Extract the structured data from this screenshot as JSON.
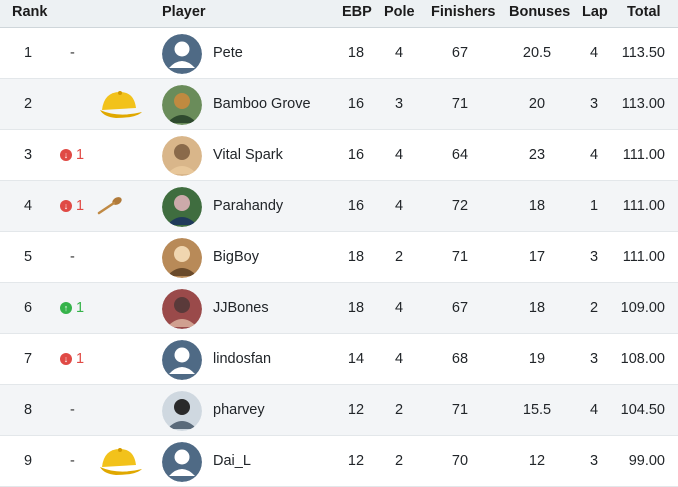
{
  "headers": {
    "rank": "Rank",
    "player": "Player",
    "ebp": "EBP",
    "pole": "Pole",
    "finishers": "Finishers",
    "bonuses": "Bonuses",
    "lap": "Lap",
    "total": "Total"
  },
  "colors": {
    "header_bg": "#edf1f3",
    "row_alt_bg": "#f3f5f7",
    "down": "#e04a45",
    "up": "#35b34a",
    "avatar_default": "#4f6a85"
  },
  "rows": [
    {
      "rank": "1",
      "change": "-",
      "change_dir": "none",
      "badge": "",
      "avatar": "default-avatar",
      "player": "Pete",
      "ebp": "18",
      "pole": "4",
      "finishers": "67",
      "bonuses": "20.5",
      "lap": "4",
      "total": "113.50"
    },
    {
      "rank": "2",
      "change": "",
      "change_dir": "none",
      "badge": "yellow-cap-icon",
      "avatar": "photo-avatar",
      "player": "Bamboo Grove",
      "ebp": "16",
      "pole": "3",
      "finishers": "71",
      "bonuses": "20",
      "lap": "3",
      "total": "113.00"
    },
    {
      "rank": "3",
      "change": "1",
      "change_dir": "down",
      "badge": "",
      "avatar": "photo-avatar",
      "player": "Vital Spark",
      "ebp": "16",
      "pole": "4",
      "finishers": "64",
      "bonuses": "23",
      "lap": "4",
      "total": "111.00"
    },
    {
      "rank": "4",
      "change": "1",
      "change_dir": "down",
      "badge": "wooden-spoon-icon",
      "avatar": "photo-avatar",
      "player": "Parahandy",
      "ebp": "16",
      "pole": "4",
      "finishers": "72",
      "bonuses": "18",
      "lap": "1",
      "total": "111.00"
    },
    {
      "rank": "5",
      "change": "-",
      "change_dir": "none",
      "badge": "",
      "avatar": "photo-avatar",
      "player": "BigBoy",
      "ebp": "18",
      "pole": "2",
      "finishers": "71",
      "bonuses": "17",
      "lap": "3",
      "total": "111.00"
    },
    {
      "rank": "6",
      "change": "1",
      "change_dir": "up",
      "badge": "",
      "avatar": "photo-avatar",
      "player": "JJBones",
      "ebp": "18",
      "pole": "4",
      "finishers": "67",
      "bonuses": "18",
      "lap": "2",
      "total": "109.00"
    },
    {
      "rank": "7",
      "change": "1",
      "change_dir": "down",
      "badge": "",
      "avatar": "default-avatar",
      "player": "lindosfan",
      "ebp": "14",
      "pole": "4",
      "finishers": "68",
      "bonuses": "19",
      "lap": "3",
      "total": "108.00"
    },
    {
      "rank": "8",
      "change": "-",
      "change_dir": "none",
      "badge": "",
      "avatar": "photo-avatar",
      "player": "pharvey",
      "ebp": "12",
      "pole": "2",
      "finishers": "71",
      "bonuses": "15.5",
      "lap": "4",
      "total": "104.50"
    },
    {
      "rank": "9",
      "change": "-",
      "change_dir": "none",
      "badge": "yellow-cap-icon",
      "avatar": "default-avatar",
      "player": "Dai_L",
      "ebp": "12",
      "pole": "2",
      "finishers": "70",
      "bonuses": "12",
      "lap": "3",
      "total": "99.00"
    }
  ]
}
